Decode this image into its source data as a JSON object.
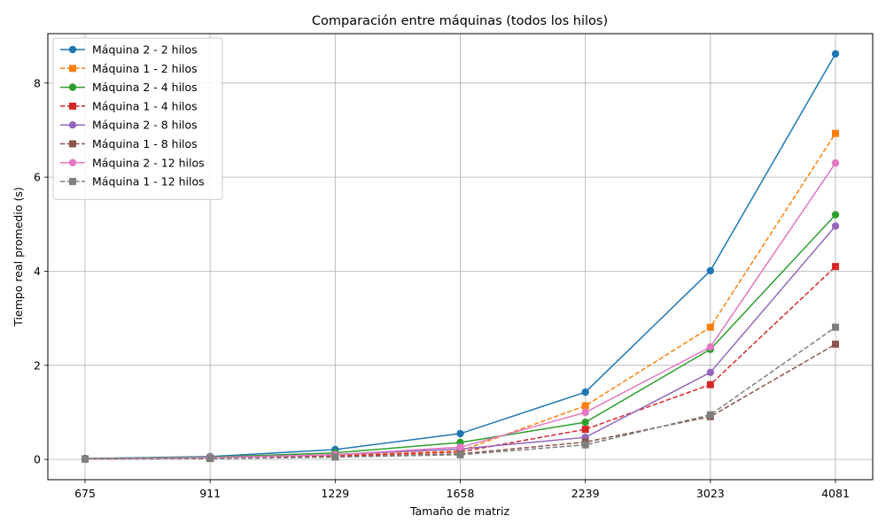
{
  "chart_data": {
    "type": "line",
    "title": "Comparación entre máquinas (todos los hilos)",
    "xlabel": "Tamaño de matriz",
    "ylabel": "Tiempo real promedio (s)",
    "categories": [
      "675",
      "911",
      "1229",
      "1658",
      "2239",
      "3023",
      "4081"
    ],
    "ylim": [
      -0.43,
      9.05
    ],
    "yticks": [
      0,
      2,
      4,
      6,
      8
    ],
    "grid": true,
    "legend_position": "top-left",
    "series": [
      {
        "name": "Máquina 2 - 2 hilos",
        "color": "#1f77b4",
        "dash": "solid",
        "marker": "circle",
        "values": [
          0.02,
          0.06,
          0.21,
          0.55,
          1.43,
          4.01,
          8.62
        ]
      },
      {
        "name": "Máquina 1 - 2 hilos",
        "color": "#ff7f0e",
        "dash": "dashed",
        "marker": "square",
        "values": [
          0.01,
          0.03,
          0.08,
          0.18,
          1.14,
          2.81,
          6.93
        ]
      },
      {
        "name": "Máquina 2 - 4 hilos",
        "color": "#2ca02c",
        "dash": "solid",
        "marker": "circle",
        "values": [
          0.02,
          0.05,
          0.14,
          0.36,
          0.79,
          2.34,
          5.2
        ]
      },
      {
        "name": "Máquina 1 - 4 hilos",
        "color": "#d62728",
        "dash": "dashed",
        "marker": "square",
        "values": [
          0.01,
          0.03,
          0.07,
          0.16,
          0.64,
          1.59,
          4.1
        ]
      },
      {
        "name": "Máquina 2 - 8 hilos",
        "color": "#9467bd",
        "dash": "solid",
        "marker": "circle",
        "values": [
          0.01,
          0.04,
          0.1,
          0.22,
          0.47,
          1.85,
          4.96
        ]
      },
      {
        "name": "Máquina 1 - 8 hilos",
        "color": "#8c564b",
        "dash": "dashed",
        "marker": "square",
        "values": [
          0.01,
          0.02,
          0.05,
          0.12,
          0.37,
          0.91,
          2.45
        ]
      },
      {
        "name": "Máquina 2 - 12 hilos",
        "color": "#e377c2",
        "dash": "solid",
        "marker": "circle",
        "values": [
          0.01,
          0.04,
          0.1,
          0.26,
          1.0,
          2.39,
          6.3
        ]
      },
      {
        "name": "Máquina 1 - 12 hilos",
        "color": "#7f7f7f",
        "dash": "dashed",
        "marker": "square",
        "values": [
          0.01,
          0.02,
          0.05,
          0.1,
          0.31,
          0.95,
          2.81
        ]
      }
    ]
  }
}
